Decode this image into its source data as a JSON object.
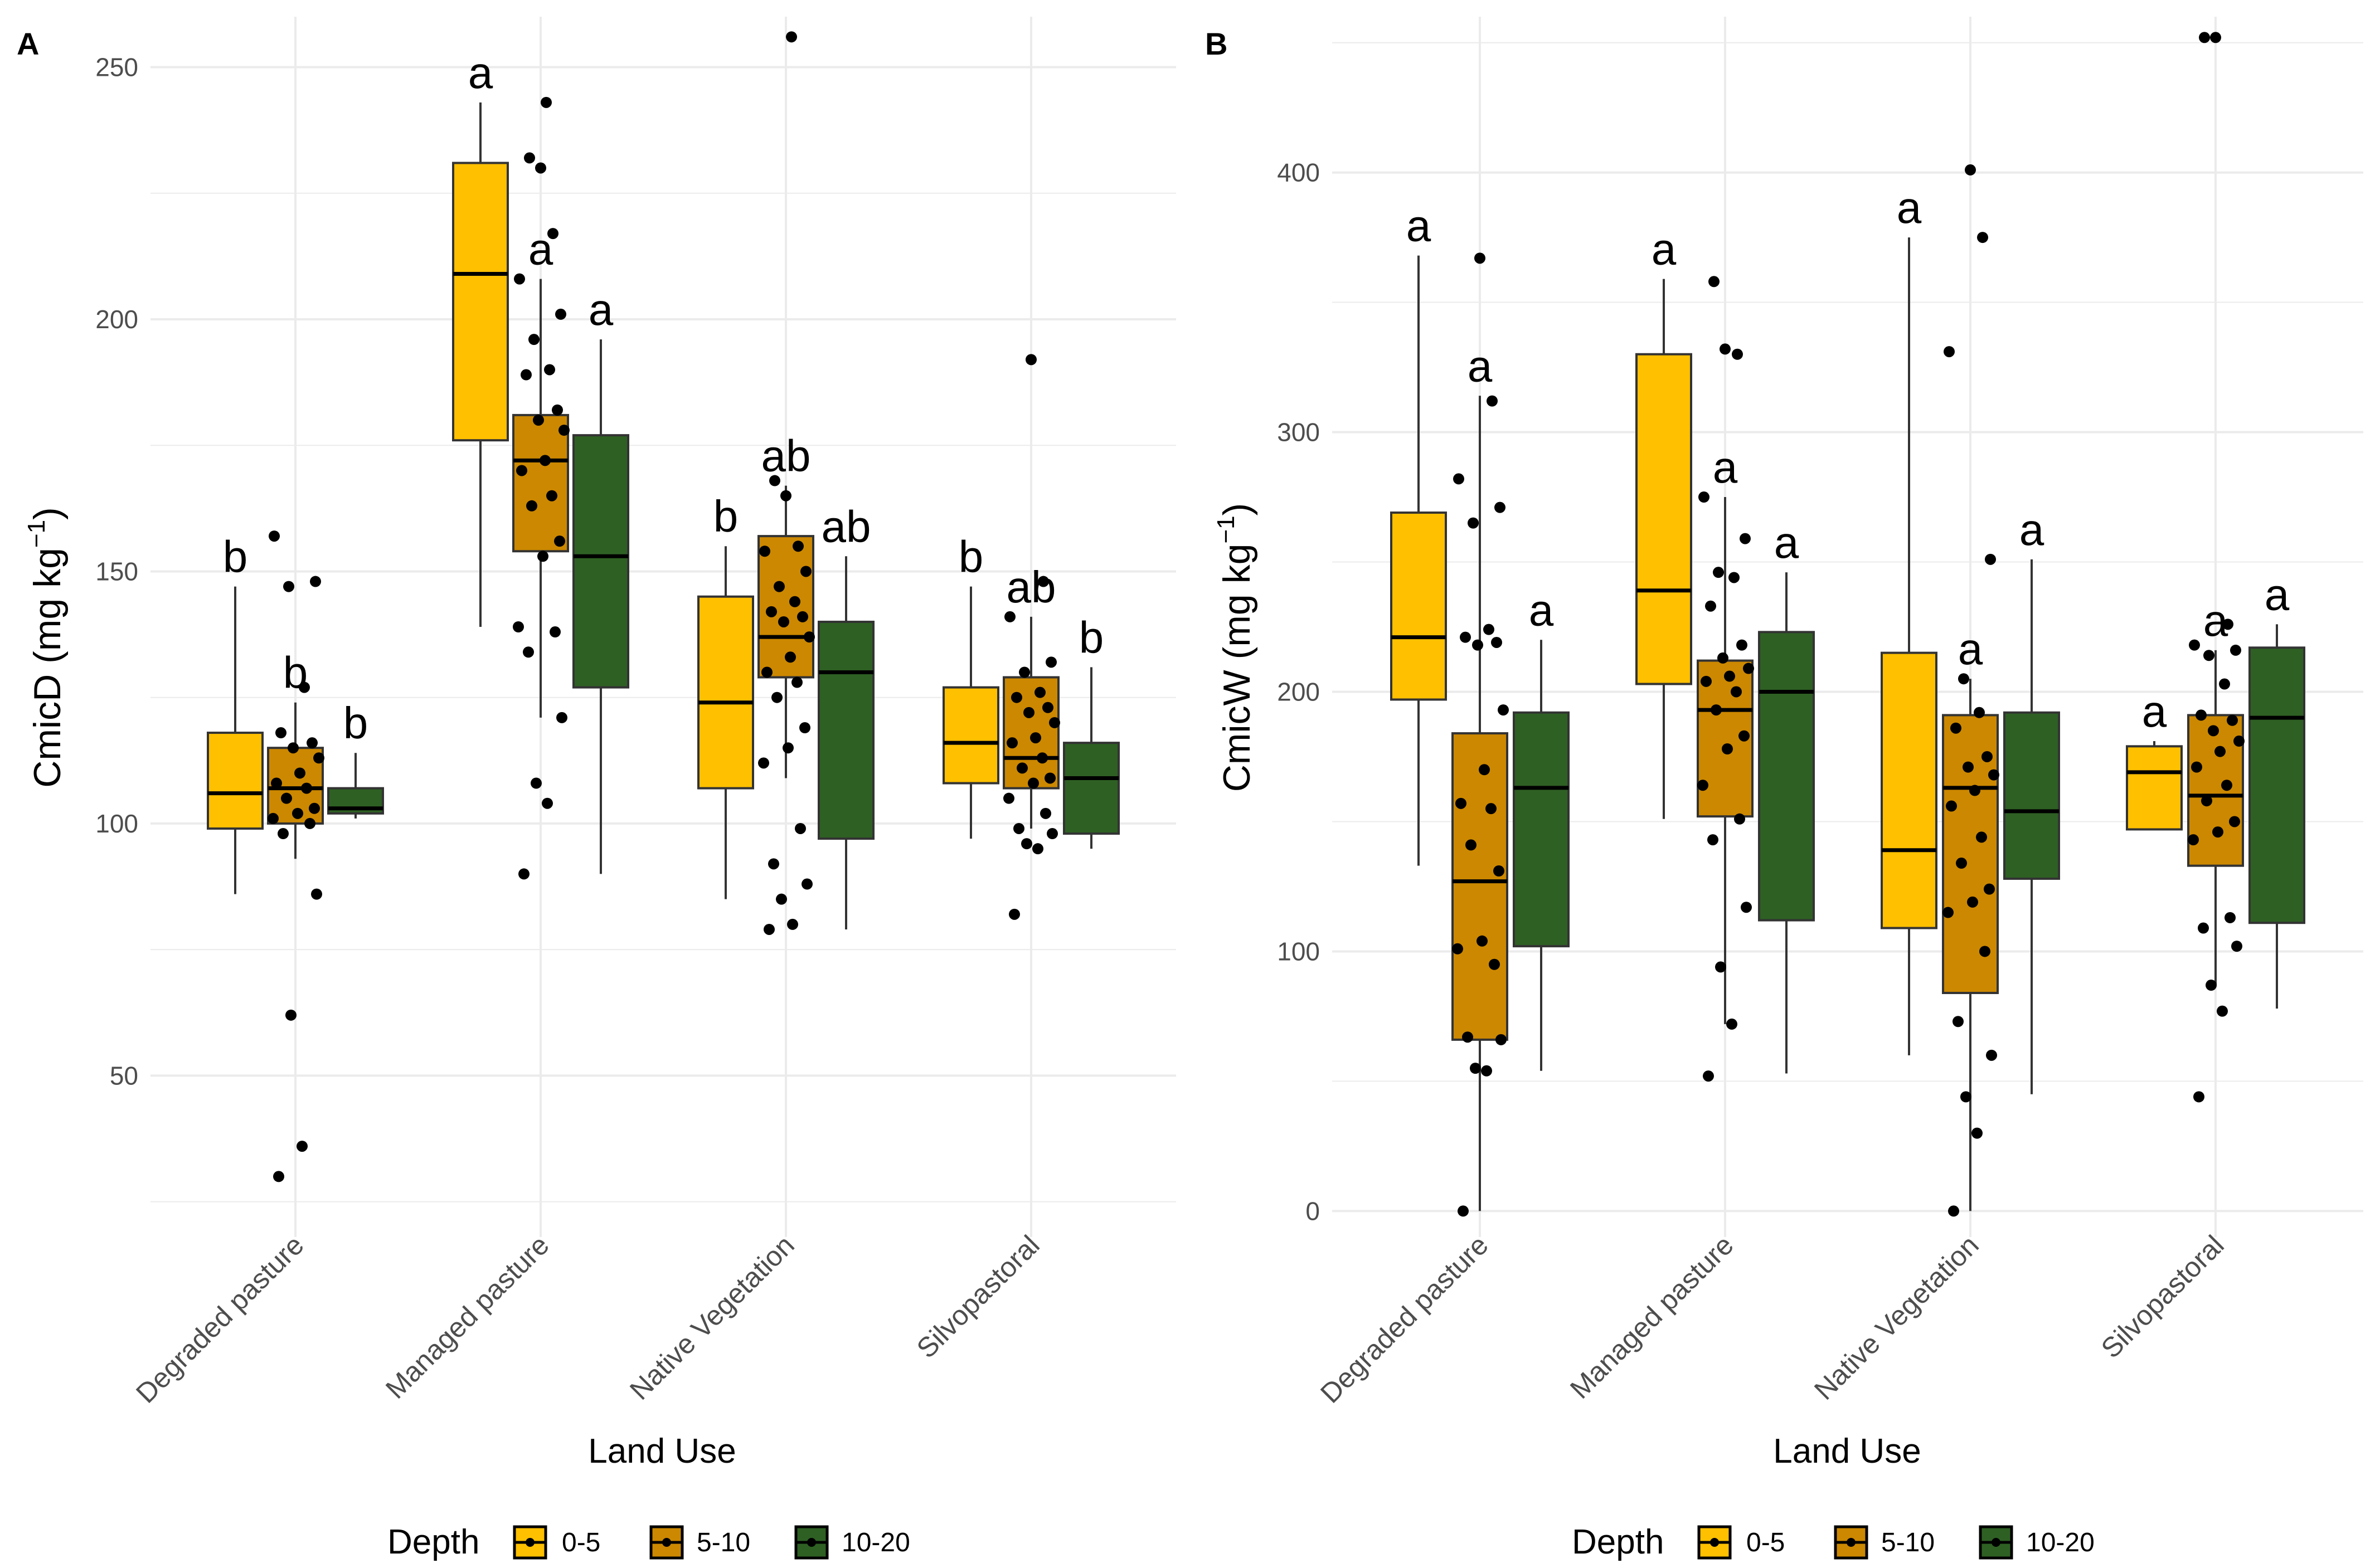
{
  "colors": {
    "d05": "#FFC000",
    "d510": "#CC8800",
    "d1020": "#2E6023",
    "grid": "#ebebeb"
  },
  "chart_data": [
    {
      "type": "boxplot",
      "panel_label": "A",
      "title": "",
      "xlabel": "Land Use",
      "ylabel_main": "CmicD (mg kg",
      "ylabel_sup": "−1",
      "ylabel_close": ")",
      "ylim": [
        18,
        260
      ],
      "yticks": [
        50,
        100,
        150,
        200,
        250
      ],
      "categories": [
        "Degraded pasture",
        "Managed pasture",
        "Native Vegetation",
        "Silvopastoral"
      ],
      "series": [
        {
          "name": "0-5",
          "color": "#FFC000",
          "boxes": [
            {
              "min": 86,
              "q1": 99,
              "median": 106,
              "q3": 118,
              "max": 147,
              "letter": "b",
              "points": []
            },
            {
              "min": 139,
              "q1": 176,
              "median": 209,
              "q3": 231,
              "max": 243,
              "letter": "a",
              "points": []
            },
            {
              "min": 85,
              "q1": 107,
              "median": 124,
              "q3": 145,
              "max": 155,
              "letter": "b",
              "points": []
            },
            {
              "min": 97,
              "q1": 108,
              "median": 116,
              "q3": 127,
              "max": 147,
              "letter": "b",
              "points": []
            }
          ]
        },
        {
          "name": "5-10",
          "color": "#CC8800",
          "boxes": [
            {
              "min": 93,
              "q1": 100,
              "median": 107,
              "q3": 115,
              "max": 124,
              "letter": "b",
              "points": [
                30,
                36,
                62,
                86,
                98,
                100,
                101,
                102,
                103,
                105,
                107,
                108,
                110,
                113,
                115,
                116,
                118,
                127,
                147,
                148,
                157
              ]
            },
            {
              "min": 121,
              "q1": 154,
              "median": 172,
              "q3": 181,
              "max": 208,
              "letter": "a",
              "points": [
                90,
                104,
                108,
                121,
                134,
                138,
                139,
                153,
                156,
                163,
                165,
                170,
                172,
                178,
                180,
                182,
                189,
                190,
                196,
                201,
                208,
                217,
                230,
                232,
                243
              ]
            },
            {
              "min": 109,
              "q1": 129,
              "median": 137,
              "q3": 157,
              "max": 167,
              "letter": "ab",
              "points": [
                79,
                80,
                85,
                88,
                92,
                99,
                112,
                115,
                119,
                125,
                128,
                130,
                133,
                137,
                140,
                141,
                142,
                144,
                147,
                150,
                154,
                155,
                165,
                168,
                256
              ]
            },
            {
              "min": 99,
              "q1": 107,
              "median": 113,
              "q3": 129,
              "max": 141,
              "letter": "ab",
              "points": [
                82,
                95,
                96,
                98,
                99,
                102,
                105,
                108,
                109,
                111,
                113,
                116,
                117,
                120,
                122,
                123,
                125,
                126,
                130,
                132,
                141,
                148,
                192
              ]
            }
          ]
        },
        {
          "name": "10-20",
          "color": "#2E6023",
          "boxes": [
            {
              "min": 101,
              "q1": 102,
              "median": 103,
              "q3": 107,
              "max": 114,
              "letter": "b",
              "points": []
            },
            {
              "min": 90,
              "q1": 127,
              "median": 153,
              "q3": 177,
              "max": 196,
              "letter": "a",
              "points": []
            },
            {
              "min": 79,
              "q1": 97,
              "median": 130,
              "q3": 140,
              "max": 153,
              "letter": "ab",
              "points": []
            },
            {
              "min": 95,
              "q1": 98,
              "median": 109,
              "q3": 116,
              "max": 131,
              "letter": "b",
              "points": []
            }
          ]
        }
      ]
    },
    {
      "type": "boxplot",
      "panel_label": "B",
      "title": "",
      "xlabel": "Land Use",
      "ylabel_main": "CmicW (mg kg",
      "ylabel_sup": "−1",
      "ylabel_close": ")",
      "ylim": [
        -10,
        460
      ],
      "yticks": [
        0,
        100,
        200,
        300,
        400
      ],
      "categories": [
        "Degraded pasture",
        "Managed pasture",
        "Native Vegetation",
        "Silvopastoral"
      ],
      "series": [
        {
          "name": "0-5",
          "color": "#FFC000",
          "boxes": [
            {
              "min": 133,
              "q1": 197,
              "median": 221,
              "q3": 269,
              "max": 368,
              "letter": "a",
              "points": []
            },
            {
              "min": 151,
              "q1": 203,
              "median": 239,
              "q3": 330,
              "max": 359,
              "letter": "a",
              "points": []
            },
            {
              "min": 60,
              "q1": 109,
              "median": 139,
              "q3": 215,
              "max": 375,
              "letter": "a",
              "points": []
            },
            {
              "min": 147,
              "q1": 147,
              "median": 169,
              "q3": 179,
              "max": 181,
              "letter": "a",
              "points": []
            }
          ]
        },
        {
          "name": "5-10",
          "color": "#CC8800",
          "boxes": [
            {
              "min": 0,
              "q1": 66,
              "median": 127,
              "q3": 184,
              "max": 314,
              "letter": "a",
              "points": [
                0,
                54,
                55,
                66,
                67,
                95,
                101,
                104,
                131,
                141,
                155,
                157,
                170,
                193,
                218,
                219,
                221,
                224,
                265,
                271,
                282,
                312,
                367
              ]
            },
            {
              "min": 72,
              "q1": 152,
              "median": 193,
              "q3": 212,
              "max": 275,
              "letter": "a",
              "points": [
                52,
                72,
                94,
                117,
                143,
                151,
                164,
                178,
                183,
                193,
                200,
                204,
                206,
                209,
                213,
                218,
                233,
                244,
                246,
                259,
                275,
                330,
                332,
                358
              ]
            },
            {
              "min": 0,
              "q1": 84,
              "median": 163,
              "q3": 191,
              "max": 205,
              "letter": "a",
              "points": [
                0,
                30,
                44,
                60,
                73,
                100,
                115,
                119,
                124,
                134,
                144,
                156,
                162,
                168,
                171,
                175,
                186,
                192,
                205,
                251,
                331,
                375,
                401
              ]
            },
            {
              "min": 87,
              "q1": 133,
              "median": 160,
              "q3": 191,
              "max": 216,
              "letter": "a",
              "points": [
                44,
                77,
                87,
                102,
                109,
                113,
                143,
                146,
                150,
                158,
                164,
                171,
                177,
                181,
                185,
                189,
                191,
                203,
                214,
                216,
                218,
                226,
                452,
                452
              ]
            }
          ]
        },
        {
          "name": "10-20",
          "color": "#2E6023",
          "boxes": [
            {
              "min": 54,
              "q1": 102,
              "median": 163,
              "q3": 192,
              "max": 220,
              "letter": "a",
              "points": []
            },
            {
              "min": 53,
              "q1": 112,
              "median": 200,
              "q3": 223,
              "max": 246,
              "letter": "a",
              "points": []
            },
            {
              "min": 45,
              "q1": 128,
              "median": 154,
              "q3": 192,
              "max": 251,
              "letter": "a",
              "points": []
            },
            {
              "min": 78,
              "q1": 111,
              "median": 190,
              "q3": 217,
              "max": 226,
              "letter": "a",
              "points": []
            }
          ]
        }
      ]
    }
  ],
  "legend": {
    "title": "Depth",
    "items": [
      "0-5",
      "5-10",
      "10-20"
    ]
  }
}
